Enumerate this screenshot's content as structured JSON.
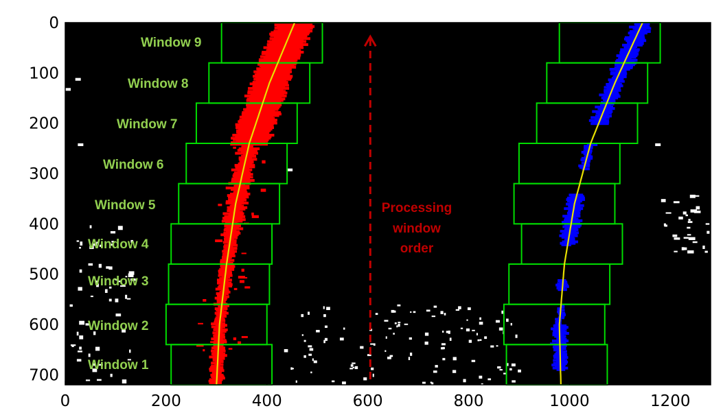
{
  "chart_data": {
    "type": "scatter",
    "title": "",
    "xlabel": "",
    "ylabel": "",
    "xlim": [
      0,
      1280
    ],
    "ylim": [
      720,
      0
    ],
    "y_inverted": true,
    "xticks": [
      0,
      200,
      400,
      600,
      800,
      1000,
      1200
    ],
    "yticks": [
      0,
      100,
      200,
      300,
      400,
      500,
      600,
      700
    ],
    "grid": false,
    "legend": "none",
    "colors": {
      "background": "#000000",
      "window_box": "#00dd00",
      "left_lane": "#ff0000",
      "right_lane": "#0000ff",
      "fit_line": "#e8e000",
      "window_label": "#92d050",
      "annotation": "#c00000",
      "noise": "#ffffff"
    },
    "window_labels": [
      "Window 1",
      "Window 2",
      "Window 3",
      "Window 4",
      "Window 5",
      "Window 6",
      "Window 7",
      "Window 8",
      "Window 9"
    ],
    "left_windows": [
      {
        "x0": 210,
        "x1": 410,
        "y0": 640,
        "y1": 720
      },
      {
        "x0": 200,
        "x1": 400,
        "y0": 560,
        "y1": 640
      },
      {
        "x0": 205,
        "x1": 405,
        "y0": 480,
        "y1": 560
      },
      {
        "x0": 210,
        "x1": 410,
        "y0": 400,
        "y1": 480
      },
      {
        "x0": 225,
        "x1": 425,
        "y0": 320,
        "y1": 400
      },
      {
        "x0": 240,
        "x1": 440,
        "y0": 240,
        "y1": 320
      },
      {
        "x0": 260,
        "x1": 460,
        "y0": 160,
        "y1": 240
      },
      {
        "x0": 285,
        "x1": 485,
        "y0": 80,
        "y1": 160
      },
      {
        "x0": 310,
        "x1": 510,
        "y0": 0,
        "y1": 80
      }
    ],
    "right_windows": [
      {
        "x0": 875,
        "x1": 1075,
        "y0": 640,
        "y1": 720
      },
      {
        "x0": 870,
        "x1": 1070,
        "y0": 560,
        "y1": 640
      },
      {
        "x0": 880,
        "x1": 1080,
        "y0": 480,
        "y1": 560
      },
      {
        "x0": 905,
        "x1": 1105,
        "y0": 400,
        "y1": 480
      },
      {
        "x0": 890,
        "x1": 1090,
        "y0": 320,
        "y1": 400
      },
      {
        "x0": 900,
        "x1": 1100,
        "y0": 240,
        "y1": 320
      },
      {
        "x0": 935,
        "x1": 1135,
        "y0": 160,
        "y1": 240
      },
      {
        "x0": 955,
        "x1": 1155,
        "y0": 80,
        "y1": 160
      },
      {
        "x0": 980,
        "x1": 1180,
        "y0": 0,
        "y1": 80
      }
    ],
    "left_fit": {
      "x": [
        455,
        405,
        365,
        338,
        320,
        306,
        300
      ],
      "y": [
        0,
        120,
        240,
        360,
        480,
        600,
        720
      ]
    },
    "right_fit": {
      "x": [
        1145,
        1090,
        1042,
        1010,
        990,
        980,
        983
      ],
      "y": [
        0,
        120,
        240,
        360,
        480,
        600,
        720
      ]
    },
    "annotation": {
      "lines": [
        "Processing",
        "window",
        "order"
      ],
      "arrow_x": 605,
      "arrow_y": [
        720,
        25
      ]
    }
  }
}
